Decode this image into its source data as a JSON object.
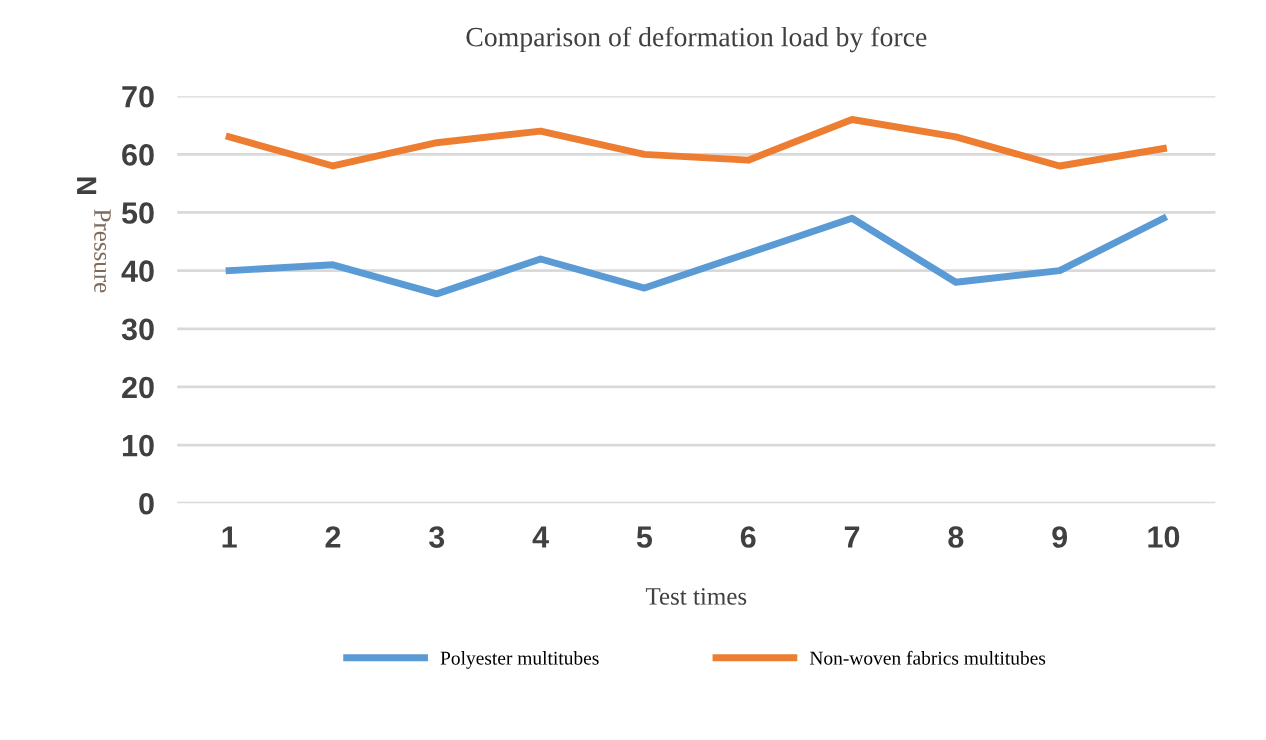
{
  "chart_data": {
    "type": "line",
    "title": "Comparison of deformation load by force",
    "xlabel": "Test times",
    "ylabel": "Pressure",
    "annotations": [
      "N"
    ],
    "categories": [
      "1",
      "2",
      "3",
      "4",
      "5",
      "6",
      "7",
      "8",
      "9",
      "10"
    ],
    "series": [
      {
        "name": "Polyester multitubes",
        "color": "#5b9bd5",
        "values": [
          40,
          41,
          36,
          42,
          37,
          43,
          49,
          38,
          40,
          49
        ]
      },
      {
        "name": "Non-woven fabrics multitubes",
        "color": "#ed7d31",
        "values": [
          63,
          58,
          62,
          64,
          60,
          59,
          66,
          63,
          58,
          61
        ]
      }
    ],
    "ylim": [
      0,
      70
    ],
    "yticks": [
      0,
      10,
      20,
      30,
      40,
      50,
      60,
      70
    ],
    "grid": "y",
    "legend": "bottom",
    "marker": "none",
    "line_style": "solid"
  }
}
